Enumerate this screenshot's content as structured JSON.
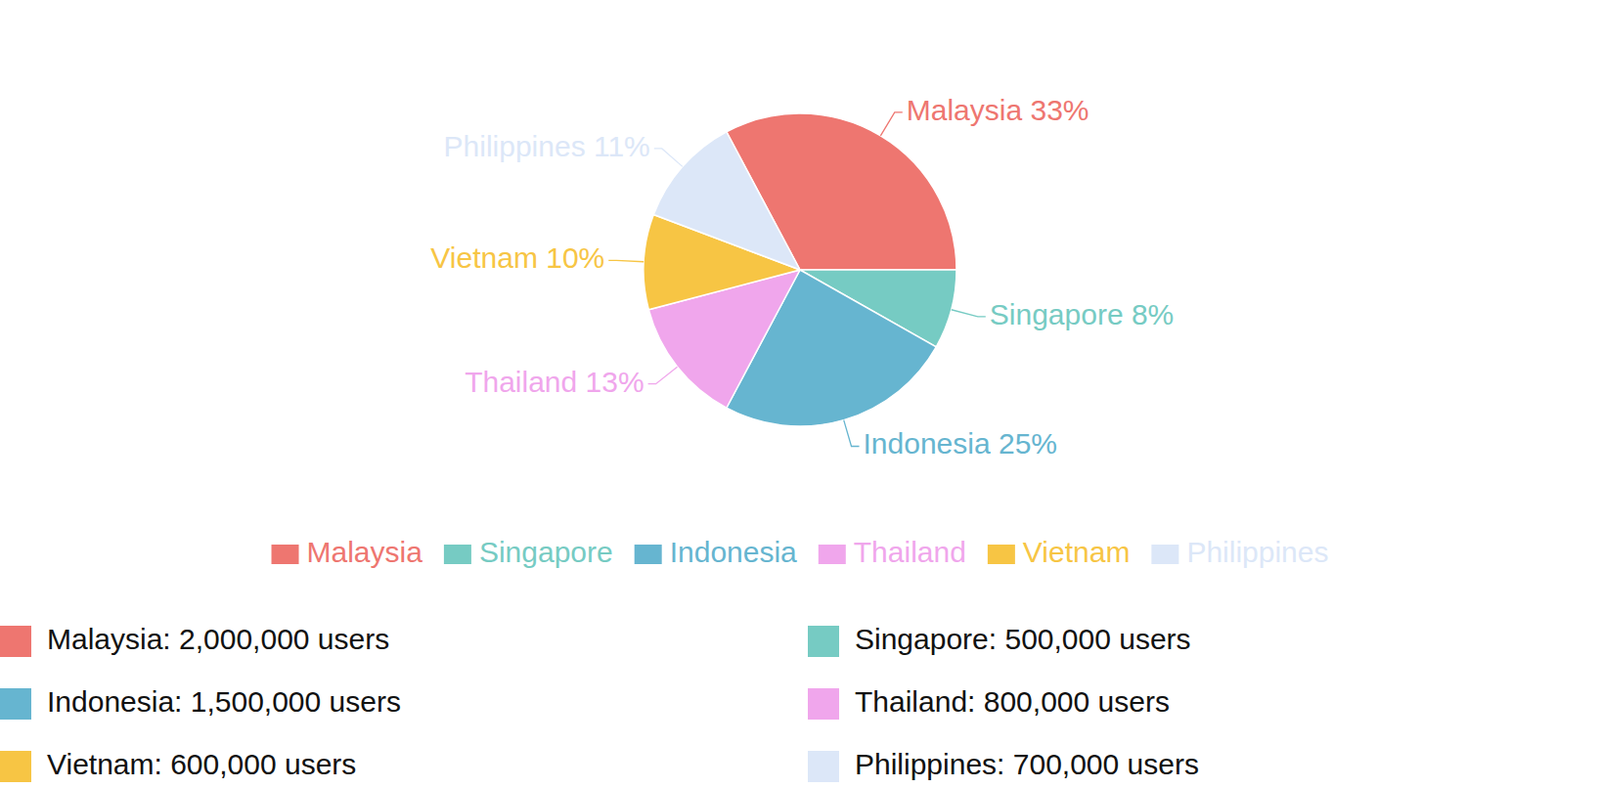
{
  "chart_data": {
    "type": "pie",
    "categories": [
      "Malaysia",
      "Singapore",
      "Indonesia",
      "Thailand",
      "Vietnam",
      "Philippines"
    ],
    "values": [
      2000000,
      500000,
      1500000,
      800000,
      600000,
      700000
    ],
    "value_labels": [
      "Malaysia: 2,000,000 users",
      "Singapore: 500,000 users",
      "Indonesia: 1,500,000 users",
      "Thailand: 800,000 users",
      "Vietnam: 600,000 users",
      "Philippines: 700,000 users"
    ],
    "percents": [
      33,
      8,
      25,
      13,
      10,
      11
    ],
    "percent_labels": [
      "Malaysia 33%",
      "Singapore 8%",
      "Indonesia 25%",
      "Thailand 13%",
      "Vietnam 10%",
      "Philippines 11%"
    ],
    "colors": [
      "#ee7670",
      "#76cbc3",
      "#66b5d0",
      "#f0a6ec",
      "#f7c544",
      "#dce7f8"
    ],
    "legend": "bottom",
    "data_labels": true
  }
}
